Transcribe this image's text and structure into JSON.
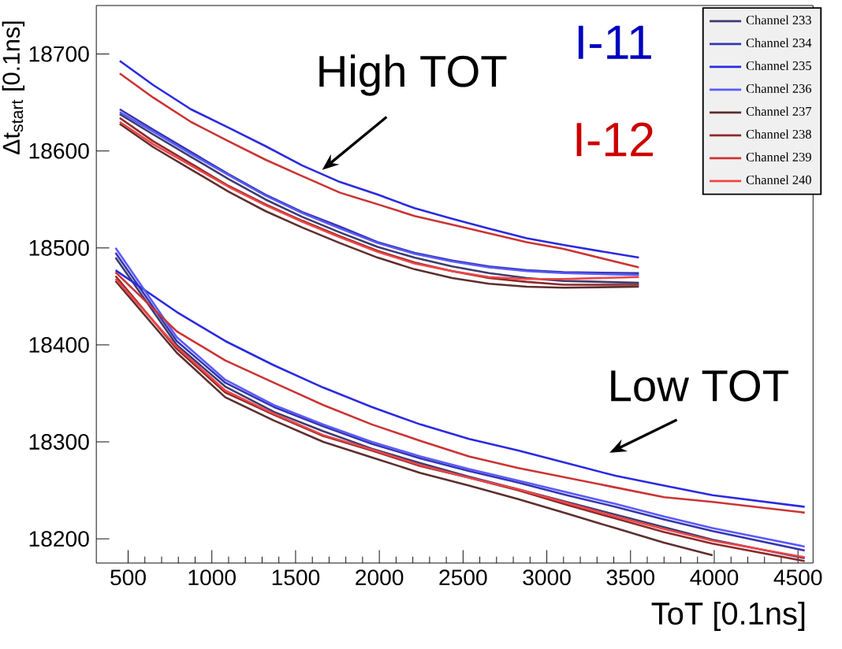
{
  "chart_data": {
    "type": "line",
    "xlabel": "ToT [0.1ns]",
    "ylabel": "Δt$_{start}$ [0.1ns]",
    "xlim": [
      310,
      4590
    ],
    "ylim": [
      18175,
      18750
    ],
    "xticks": [
      500,
      1000,
      1500,
      2000,
      2500,
      3000,
      3500,
      4000,
      4500
    ],
    "yticks": [
      18200,
      18300,
      18400,
      18500,
      18600,
      18700
    ],
    "legend": "top right",
    "annotations": [
      "High TOT",
      "Low TOT",
      "I-11",
      "I-12"
    ],
    "series": [
      {
        "name": "Channel 233",
        "color": "#3c3c6e",
        "x": [
          450,
          650,
          875,
          1100,
          1320,
          1540,
          1765,
          1990,
          2210,
          2435,
          2655,
          2880,
          3100,
          3550
        ],
        "values": [
          18638,
          18617,
          18594,
          18571,
          18550,
          18532,
          18516,
          18501,
          18490,
          18481,
          18474,
          18469,
          18466,
          18464
        ]
      },
      {
        "name": "Channel 234",
        "color": "#3535b0",
        "x": [
          450,
          650,
          875,
          1100,
          1320,
          1540,
          1765,
          1990,
          2210,
          2435,
          2655,
          2880,
          3100,
          3550
        ],
        "values": [
          18643,
          18622,
          18599,
          18576,
          18555,
          18537,
          18522,
          18506,
          18495,
          18487,
          18481,
          18477,
          18475,
          18474
        ]
      },
      {
        "name": "Channel 235",
        "color": "#2a2ae0",
        "x": [
          450,
          650,
          875,
          1100,
          1320,
          1540,
          1765,
          1990,
          2210,
          2435,
          2655,
          2880,
          3100,
          3550
        ],
        "values": [
          18693,
          18668,
          18643,
          18624,
          18605,
          18585,
          18568,
          18555,
          18541,
          18530,
          18520,
          18510,
          18503,
          18490
        ]
      },
      {
        "name": "Channel 236",
        "color": "#5a5aff",
        "x": [
          450,
          650,
          875,
          1100,
          1320,
          1540,
          1765,
          1990,
          2210,
          2435,
          2655,
          2880,
          3100,
          3550
        ],
        "values": [
          18640,
          18620,
          18597,
          18575,
          18554,
          18536,
          18520,
          18505,
          18494,
          18486,
          18480,
          18476,
          18474,
          18472
        ]
      },
      {
        "name": "Channel 237",
        "color": "#5e2e2e",
        "x": [
          450,
          650,
          875,
          1100,
          1320,
          1540,
          1765,
          1990,
          2210,
          2435,
          2655,
          2880,
          3100,
          3550
        ],
        "values": [
          18628,
          18604,
          18581,
          18558,
          18538,
          18521,
          18505,
          18490,
          18478,
          18469,
          18463,
          18460,
          18459,
          18460
        ]
      },
      {
        "name": "Channel 238",
        "color": "#8e2a2a",
        "x": [
          450,
          650,
          875,
          1100,
          1320,
          1540,
          1765,
          1990,
          2210,
          2435,
          2655,
          2880,
          3100,
          3550
        ],
        "values": [
          18634,
          18610,
          18587,
          18564,
          18545,
          18528,
          18512,
          18497,
          18485,
          18476,
          18469,
          18465,
          18462,
          18462
        ]
      },
      {
        "name": "Channel 239",
        "color": "#cc3333",
        "x": [
          450,
          650,
          875,
          1100,
          1320,
          1540,
          1765,
          1990,
          2210,
          2435,
          2655,
          2880,
          3100,
          3550
        ],
        "values": [
          18680,
          18655,
          18630,
          18610,
          18591,
          18574,
          18557,
          18545,
          18533,
          18524,
          18515,
          18506,
          18499,
          18480
        ]
      },
      {
        "name": "Channel 240",
        "color": "#f04545",
        "x": [
          450,
          650,
          875,
          1100,
          1320,
          1540,
          1765,
          1990,
          2210,
          2435,
          2655,
          2880,
          3100,
          3550
        ],
        "values": [
          18630,
          18607,
          18585,
          18563,
          18544,
          18527,
          18511,
          18496,
          18484,
          18476,
          18470,
          18468,
          18468,
          18470
        ]
      },
      {
        "color": "#3c3c6e",
        "x": [
          425,
          790,
          1080,
          1370,
          1665,
          1955,
          2245,
          2535,
          2830,
          3120,
          3410,
          3700,
          3990,
          4540
        ],
        "values": [
          18490,
          18400,
          18357,
          18331,
          18311,
          18293,
          18278,
          18264,
          18251,
          18238,
          18225,
          18212,
          18199,
          18180
        ]
      },
      {
        "color": "#3535b0",
        "x": [
          425,
          790,
          1080,
          1370,
          1665,
          1955,
          2245,
          2535,
          2830,
          3120,
          3410,
          3700,
          3990,
          4540
        ],
        "values": [
          18495,
          18404,
          18361,
          18336,
          18316,
          18298,
          18283,
          18270,
          18258,
          18245,
          18233,
          18220,
          18208,
          18188
        ]
      },
      {
        "color": "#2a2ae0",
        "x": [
          425,
          790,
          1080,
          1370,
          1665,
          1955,
          2245,
          2535,
          2830,
          3120,
          3410,
          3700,
          3990,
          4540
        ],
        "values": [
          18477,
          18434,
          18404,
          18379,
          18356,
          18336,
          18318,
          18303,
          18291,
          18278,
          18265,
          18255,
          18245,
          18233
        ]
      },
      {
        "color": "#5a5aff",
        "x": [
          425,
          790,
          1080,
          1370,
          1665,
          1955,
          2245,
          2535,
          2830,
          3120,
          3410,
          3700,
          3990,
          4540
        ],
        "values": [
          18500,
          18408,
          18364,
          18338,
          18318,
          18300,
          18285,
          18272,
          18260,
          18248,
          18236,
          18223,
          18211,
          18192
        ]
      },
      {
        "color": "#5e2e2e",
        "x": [
          425,
          790,
          1080,
          1370,
          1665,
          1955,
          2245,
          2535,
          2830,
          3120,
          3410,
          3700,
          3990
        ],
        "values": [
          18466,
          18392,
          18346,
          18322,
          18300,
          18284,
          18268,
          18255,
          18241,
          18226,
          18211,
          18196,
          18183
        ]
      },
      {
        "color": "#8e2a2a",
        "x": [
          425,
          790,
          1080,
          1370,
          1665,
          1955,
          2245,
          2535,
          2830,
          3120,
          3410,
          3700,
          3990,
          4540
        ],
        "values": [
          18471,
          18396,
          18351,
          18328,
          18306,
          18291,
          18275,
          18263,
          18250,
          18235,
          18221,
          18207,
          18195,
          18177
        ]
      },
      {
        "color": "#cc3333",
        "x": [
          425,
          790,
          1080,
          1370,
          1665,
          1955,
          2245,
          2535,
          2830,
          3120,
          3410,
          3700,
          3990,
          4540
        ],
        "values": [
          18475,
          18414,
          18384,
          18361,
          18338,
          18318,
          18301,
          18285,
          18273,
          18263,
          18253,
          18243,
          18238,
          18227
        ]
      },
      {
        "color": "#f04545",
        "x": [
          425,
          790,
          1080,
          1370,
          1665,
          1955,
          2245,
          2535,
          2830,
          3120,
          3410,
          3700,
          3990,
          4540
        ],
        "values": [
          18468,
          18398,
          18353,
          18329,
          18307,
          18292,
          18276,
          18263,
          18251,
          18237,
          18223,
          18210,
          18198,
          18181
        ]
      }
    ]
  }
}
